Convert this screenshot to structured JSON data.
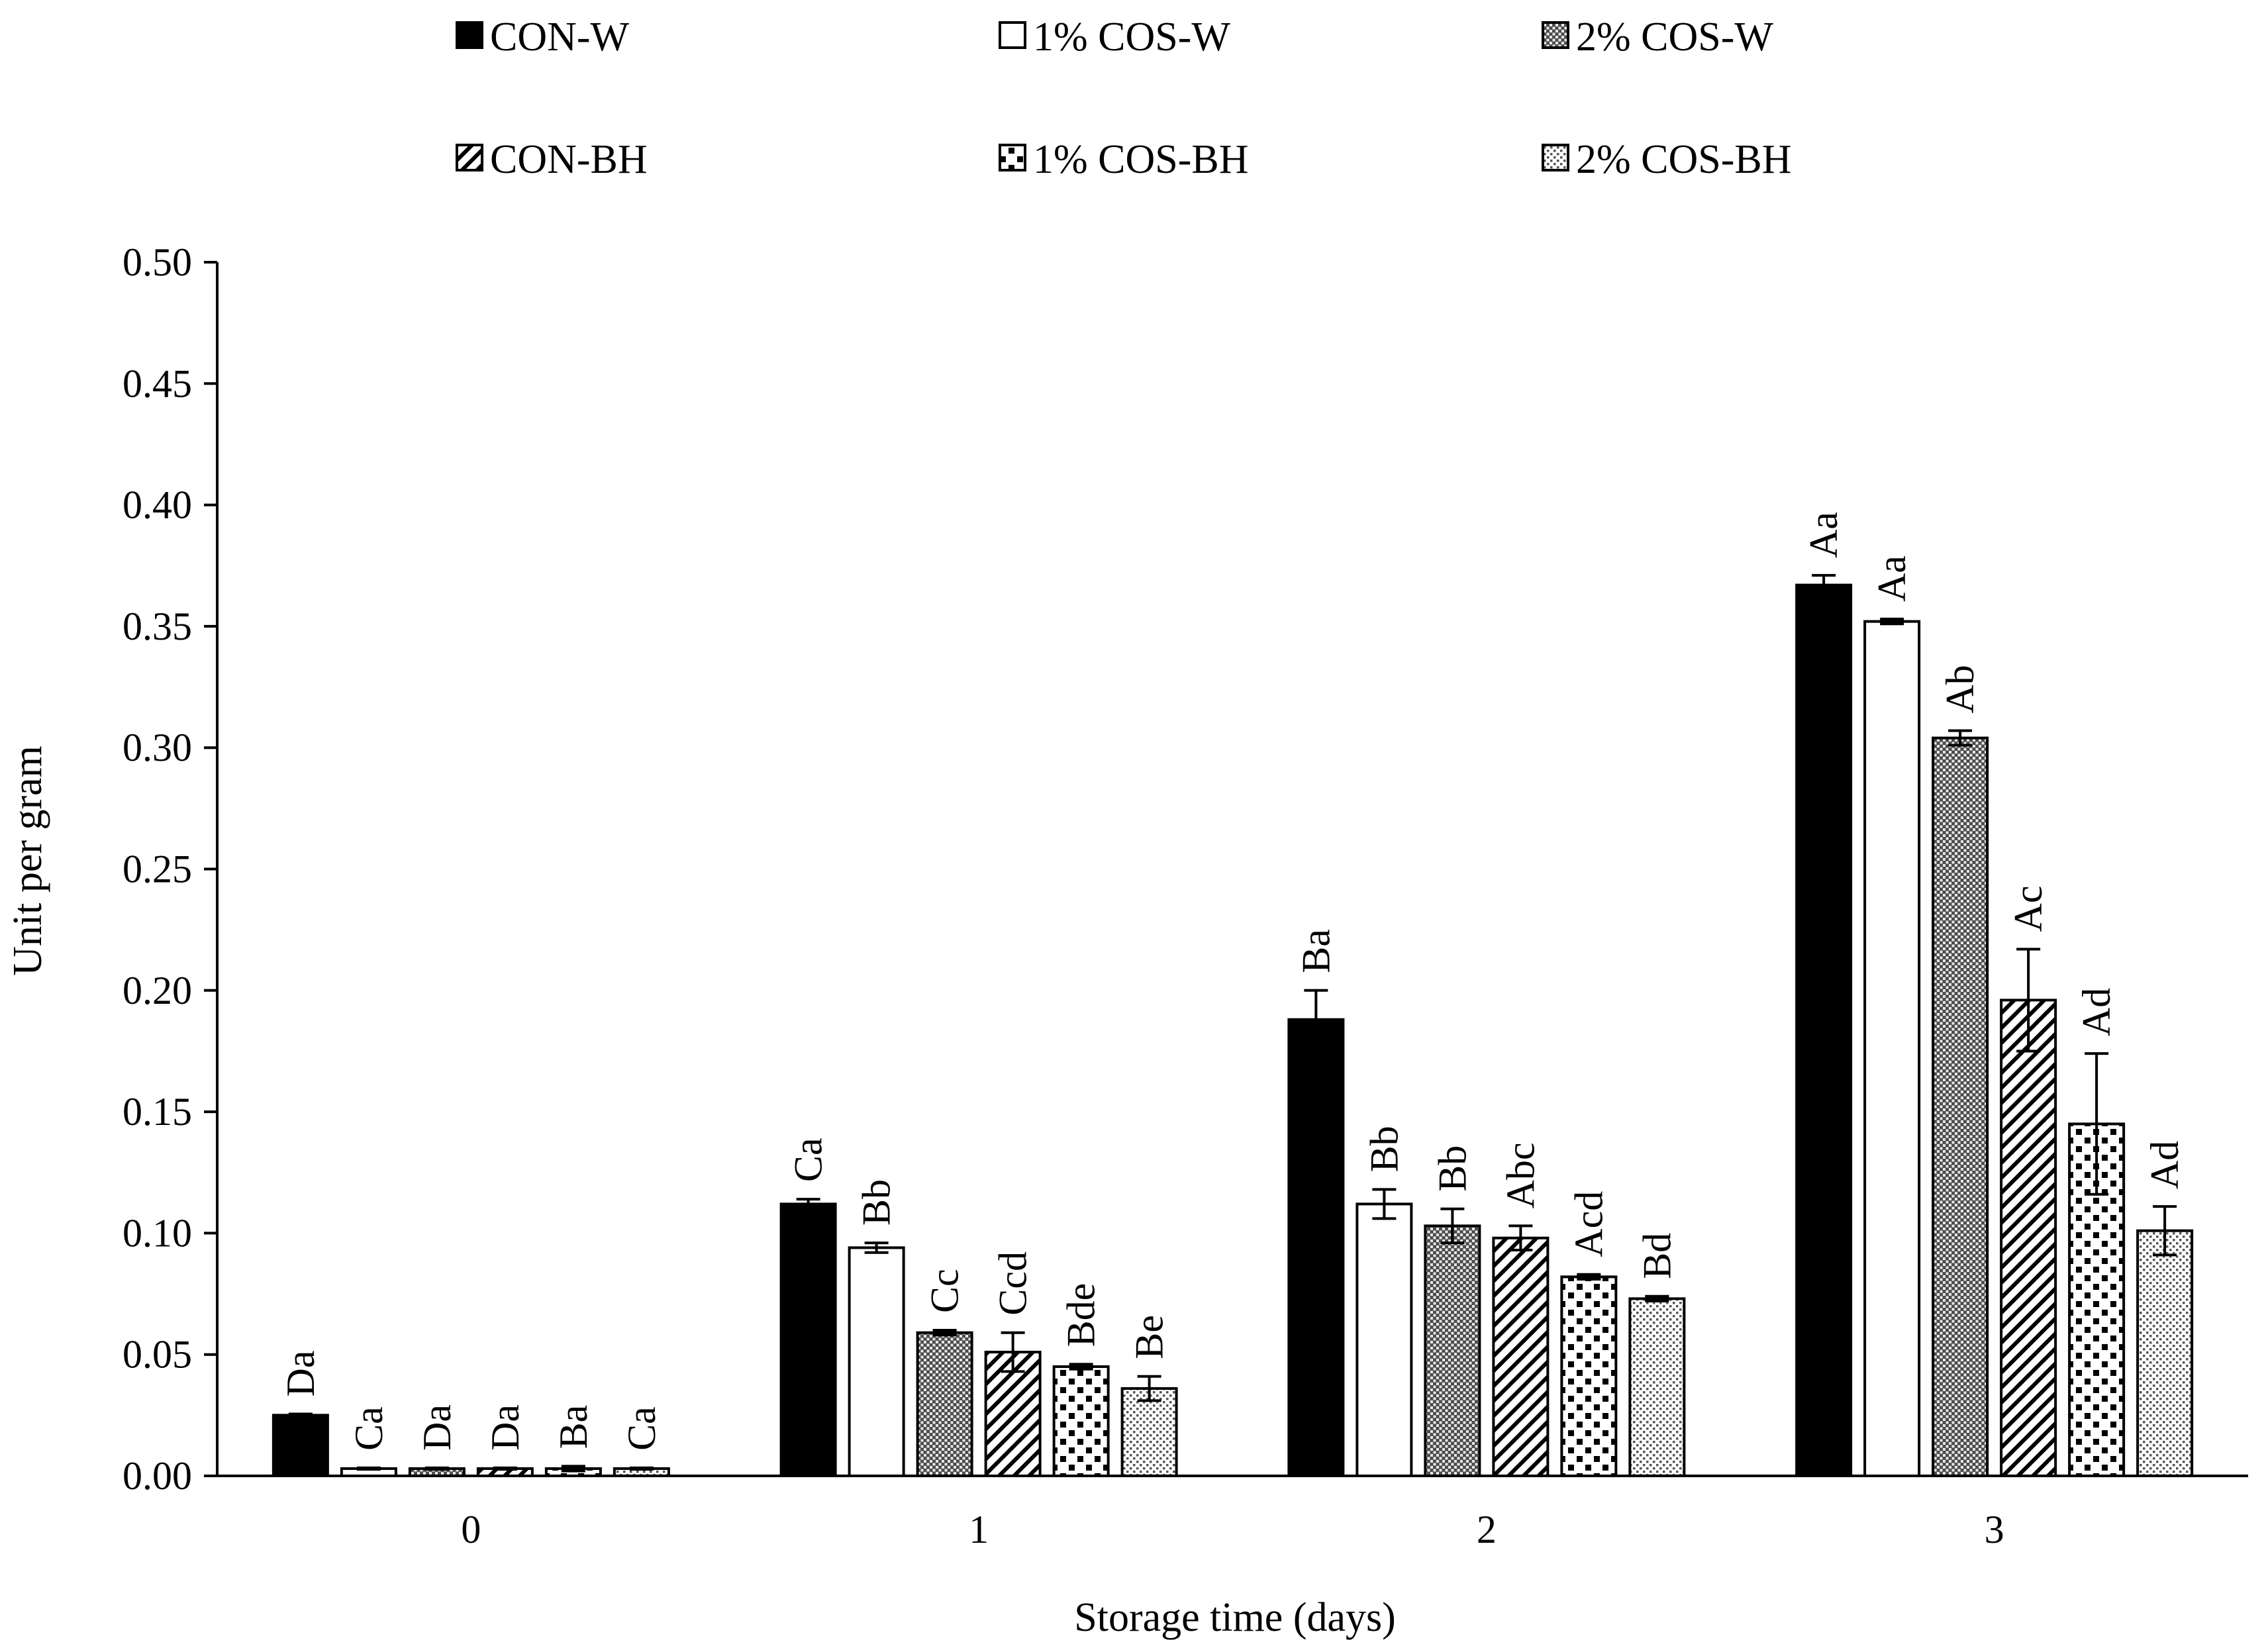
{
  "chart_data": {
    "type": "bar",
    "title": "",
    "xlabel": "Storage time (days)",
    "ylabel": "Unit per gram",
    "ylim": [
      0,
      0.5
    ],
    "yticks": [
      "0.00",
      "0.05",
      "0.10",
      "0.15",
      "0.20",
      "0.25",
      "0.30",
      "0.35",
      "0.40",
      "0.45",
      "0.50"
    ],
    "categories": [
      "0",
      "1",
      "2",
      "3"
    ],
    "legend_position": "top",
    "grid": false,
    "series": [
      {
        "name": "CON-W",
        "pattern": "solid",
        "values": [
          0.025,
          0.112,
          0.188,
          0.367
        ],
        "errors": [
          0.0005,
          0.002,
          0.012,
          0.004
        ],
        "labels": [
          "Da",
          "Ca",
          "Ba",
          "Aa"
        ]
      },
      {
        "name": "1% COS-W",
        "pattern": "empty",
        "values": [
          0.003,
          0.094,
          0.112,
          0.352
        ],
        "errors": [
          0.0003,
          0.002,
          0.006,
          0.001
        ],
        "labels": [
          "Ca",
          "Bb",
          "Bb",
          "Aa"
        ]
      },
      {
        "name": "2% COS-W",
        "pattern": "crosshatch",
        "values": [
          0.003,
          0.059,
          0.103,
          0.304
        ],
        "errors": [
          0.0003,
          0.001,
          0.007,
          0.003
        ],
        "labels": [
          "Da",
          "Cc",
          "Bb",
          "Ab"
        ]
      },
      {
        "name": "CON-BH",
        "pattern": "diagonal",
        "values": [
          0.003,
          0.051,
          0.098,
          0.196
        ],
        "errors": [
          0.0003,
          0.008,
          0.005,
          0.021
        ],
        "labels": [
          "Da",
          "Ccd",
          "Abc",
          "Ac"
        ]
      },
      {
        "name": "1% COS-BH",
        "pattern": "checker",
        "values": [
          0.003,
          0.045,
          0.082,
          0.145
        ],
        "errors": [
          0.001,
          0.001,
          0.001,
          0.029
        ],
        "labels": [
          "Ba",
          "Bde",
          "Acd",
          "Ad"
        ]
      },
      {
        "name": "2% COS-BH",
        "pattern": "dots",
        "values": [
          0.003,
          0.036,
          0.073,
          0.101
        ],
        "errors": [
          0.0003,
          0.005,
          0.001,
          0.01
        ],
        "labels": [
          "Ca",
          "Be",
          "Bd",
          "Ad"
        ]
      }
    ]
  },
  "colors": {
    "ink": "#000000",
    "background": "#ffffff"
  }
}
